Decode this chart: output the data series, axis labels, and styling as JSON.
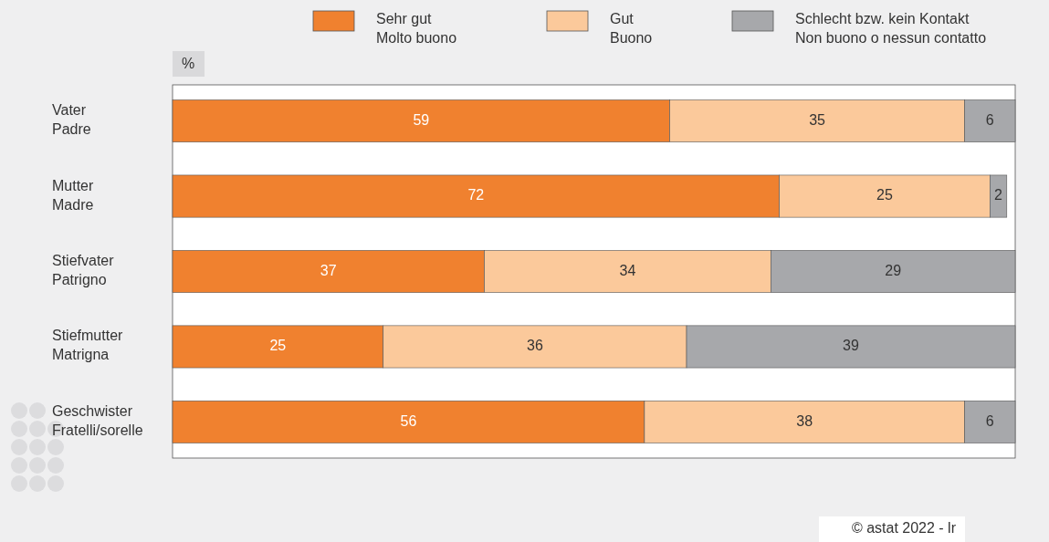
{
  "chart_data": {
    "type": "bar",
    "orientation": "horizontal",
    "stacked": true,
    "data_labels": true,
    "legend": "top",
    "xlabel": "%",
    "categories": [
      "Vater\nPadre",
      "Mutter\nMadre",
      "Stiefvater\nPatrigno",
      "Stiefmutter\nMatrigna",
      "Geschwister\nFratelli/sorelle"
    ],
    "series": [
      {
        "name": "Sehr gut\nMolto buono",
        "color": "#f0812f",
        "values": [
          59,
          72,
          37,
          25,
          56
        ]
      },
      {
        "name": "Gut\nBuono",
        "color": "#fbc99b",
        "values": [
          35,
          25,
          34,
          36,
          38
        ]
      },
      {
        "name": "Schlecht bzw. kein Kontakt\nNon buono o nessun contatto",
        "color": "#a7a8ab",
        "values": [
          6,
          2,
          29,
          39,
          6
        ]
      }
    ],
    "annotations": [
      "© astat 2022 - lr"
    ]
  }
}
